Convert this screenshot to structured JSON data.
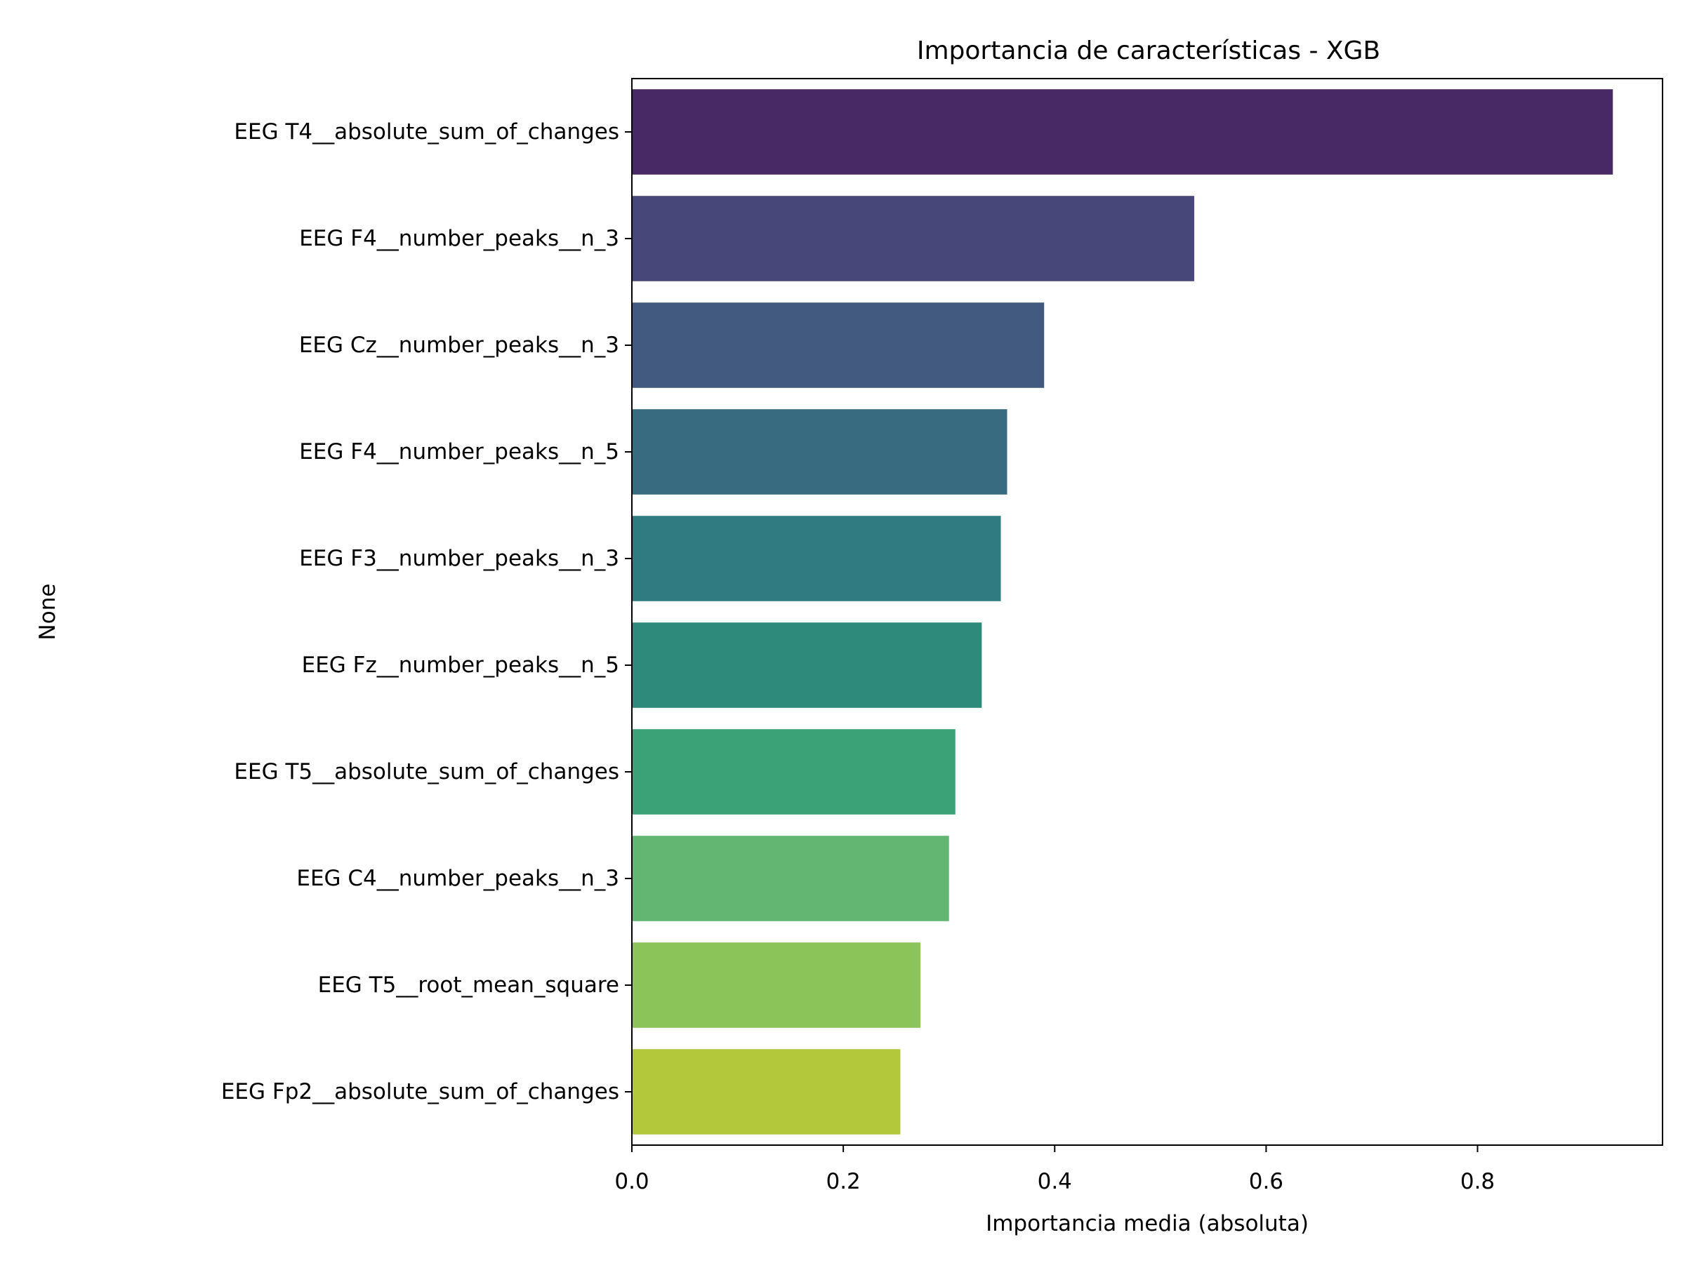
{
  "chart_data": {
    "type": "bar",
    "orientation": "horizontal",
    "title": "Importancia de características - XGB",
    "xlabel": "Importancia media (absoluta)",
    "ylabel": "None",
    "xlim": [
      0,
      0.975
    ],
    "xticks": [
      0.0,
      0.2,
      0.4,
      0.6,
      0.8
    ],
    "xtick_labels": [
      "0.0",
      "0.2",
      "0.4",
      "0.6",
      "0.8"
    ],
    "grid": false,
    "legend": false,
    "palette": "viridis",
    "categories": [
      "EEG T4__absolute_sum_of_changes",
      "EEG F4__number_peaks__n_3",
      "EEG Cz__number_peaks__n_3",
      "EEG F4__number_peaks__n_5",
      "EEG F3__number_peaks__n_3",
      "EEG Fz__number_peaks__n_5",
      "EEG T5__absolute_sum_of_changes",
      "EEG C4__number_peaks__n_3",
      "EEG T5__root_mean_square",
      "EEG Fp2__absolute_sum_of_changes"
    ],
    "values": [
      0.928,
      0.532,
      0.39,
      0.355,
      0.349,
      0.331,
      0.306,
      0.3,
      0.273,
      0.254
    ],
    "colors": [
      "#482865",
      "#48477a",
      "#425a80",
      "#386b80",
      "#2f7b81",
      "#2e8b7c",
      "#3ba277",
      "#62b671",
      "#8bc55a",
      "#b3c83a"
    ]
  }
}
